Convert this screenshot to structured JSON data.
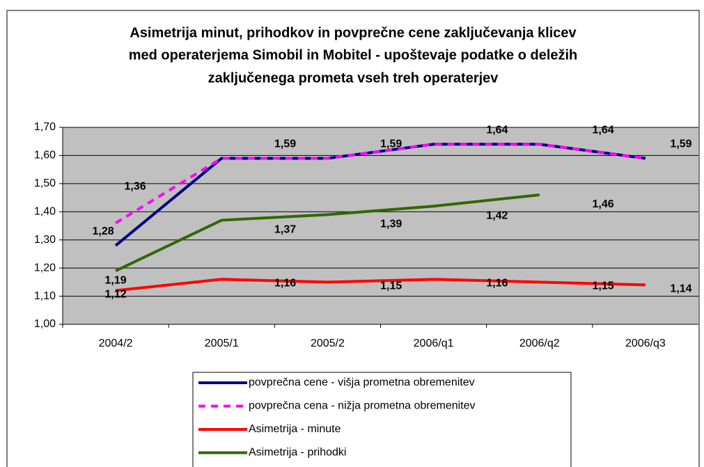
{
  "chart_data": {
    "type": "line",
    "title": [
      "Asimetrija minut, prihodkov in povprečne cene zaključevanja klicev",
      "med operaterjema Simobil in Mobitel - upoštevaje podatke o deležih",
      "zaključenega prometa vseh treh operaterjev"
    ],
    "categories": [
      "2004/2",
      "2005/1",
      "2005/2",
      "2006/q1",
      "2006/q2",
      "2006/q3"
    ],
    "ylim": [
      1.0,
      1.7
    ],
    "yticks": [
      {
        "value": 1.0,
        "label": "1,00"
      },
      {
        "value": 1.1,
        "label": "1,10"
      },
      {
        "value": 1.2,
        "label": "1,20"
      },
      {
        "value": 1.3,
        "label": "1,30"
      },
      {
        "value": 1.4,
        "label": "1,40"
      },
      {
        "value": 1.5,
        "label": "1,50"
      },
      {
        "value": 1.6,
        "label": "1,60"
      },
      {
        "value": 1.7,
        "label": "1,70"
      }
    ],
    "grid": true,
    "series": [
      {
        "name": "povprečna cene - višja prometna obremenitev",
        "color": "#000080",
        "dash": false,
        "values": [
          1.28,
          1.59,
          1.59,
          1.64,
          1.64,
          1.59
        ],
        "value_labels": [
          "1,28",
          "1,59",
          "1,59",
          "1,64",
          "1,64",
          "1,59"
        ]
      },
      {
        "name": "povprečna cena - nižja prometna obremenitev",
        "color": "#ff00ff",
        "dash": true,
        "values": [
          1.36,
          1.59,
          1.59,
          1.64,
          1.64,
          1.59
        ],
        "value_labels": [
          "1,36",
          null,
          null,
          null,
          null,
          null
        ]
      },
      {
        "name": "Asimetrija - minute",
        "color": "#ff0000",
        "dash": false,
        "values": [
          1.12,
          1.16,
          1.15,
          1.16,
          1.15,
          1.14
        ],
        "value_labels": [
          "1,12",
          "1,16",
          "1,15",
          "1,16",
          "1,15",
          "1,14"
        ]
      },
      {
        "name": "Asimetrija - prihodki",
        "color": "#336600",
        "dash": false,
        "values": [
          1.19,
          1.37,
          1.39,
          1.42,
          1.46,
          null
        ],
        "value_labels": [
          "1,19",
          "1,37",
          "1,39",
          "1,42",
          "1,46",
          null
        ]
      }
    ]
  }
}
